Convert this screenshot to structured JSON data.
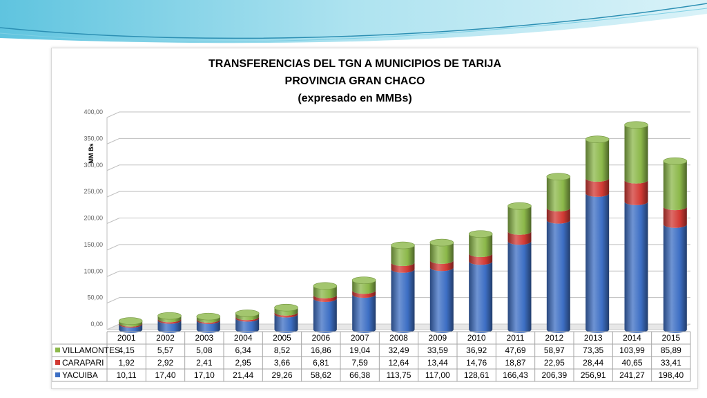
{
  "chart_data": {
    "type": "bar",
    "stacked": true,
    "title_lines": [
      "TRANSFERENCIAS DEL TGN A MUNICIPIOS DE  TARIJA",
      "PROVINCIA GRAN CHACO",
      "(expresado en MMBs)"
    ],
    "ylabel": "MM Bs",
    "xlabel": "",
    "ylim": [
      0,
      400
    ],
    "yticks": [
      "0,00",
      "50,00",
      "100,00",
      "150,00",
      "200,00",
      "250,00",
      "300,00",
      "350,00",
      "400,00"
    ],
    "grid": true,
    "categories": [
      "2001",
      "2002",
      "2003",
      "2004",
      "2005",
      "2006",
      "2007",
      "2008",
      "2009",
      "2010",
      "2011",
      "2012",
      "2013",
      "2014",
      "2015"
    ],
    "series": [
      {
        "name": "YACUIBA",
        "color": "#3d6fc4",
        "values": [
          10.11,
          17.4,
          17.1,
          21.44,
          29.26,
          58.62,
          66.38,
          113.75,
          117.0,
          128.61,
          166.43,
          206.39,
          256.91,
          241.27,
          198.4
        ],
        "labels": [
          "10,11",
          "17,40",
          "17,10",
          "21,44",
          "29,26",
          "58,62",
          "66,38",
          "113,75",
          "117,00",
          "128,61",
          "166,43",
          "206,39",
          "256,91",
          "241,27",
          "198,40"
        ]
      },
      {
        "name": "CARAPARI",
        "color": "#d23a34",
        "values": [
          1.92,
          2.92,
          2.41,
          2.95,
          3.66,
          6.81,
          7.59,
          12.64,
          13.44,
          14.76,
          18.87,
          22.95,
          28.44,
          40.65,
          33.41
        ],
        "labels": [
          "1,92",
          "2,92",
          "2,41",
          "2,95",
          "3,66",
          "6,81",
          "7,59",
          "12,64",
          "13,44",
          "14,76",
          "18,87",
          "22,95",
          "28,44",
          "40,65",
          "33,41"
        ]
      },
      {
        "name": "VILLAMONTES",
        "color": "#8cb84a",
        "values": [
          4.15,
          5.57,
          5.08,
          6.34,
          8.52,
          16.86,
          19.04,
          32.49,
          33.59,
          36.92,
          47.69,
          58.97,
          73.35,
          103.99,
          85.89
        ],
        "labels": [
          "4,15",
          "5,57",
          "5,08",
          "6,34",
          "8,52",
          "16,86",
          "19,04",
          "32,49",
          "33,59",
          "36,92",
          "47,69",
          "58,97",
          "73,35",
          "103,99",
          "85,89"
        ]
      }
    ],
    "table_row_order": [
      "VILLAMONTES",
      "CARAPARI",
      "YACUIBA"
    ]
  }
}
